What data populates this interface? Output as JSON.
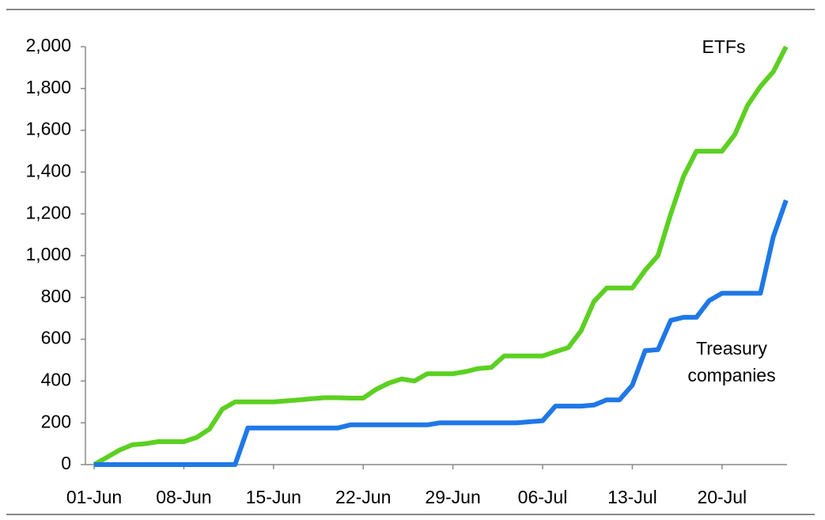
{
  "chart_data": {
    "type": "line",
    "categories": [
      "01-Jun",
      null,
      null,
      null,
      null,
      null,
      null,
      "08-Jun",
      null,
      null,
      null,
      null,
      null,
      null,
      "15-Jun",
      null,
      null,
      null,
      null,
      null,
      null,
      "22-Jun",
      null,
      null,
      null,
      null,
      null,
      null,
      "29-Jun",
      null,
      null,
      null,
      null,
      null,
      null,
      "06-Jul",
      null,
      null,
      null,
      null,
      null,
      null,
      "13-Jul",
      null,
      null,
      null,
      null,
      null,
      null,
      "20-Jul",
      null,
      null,
      null,
      null,
      null
    ],
    "series": [
      {
        "name": "ETFs",
        "color": "#5cd022",
        "values": [
          0,
          35,
          70,
          95,
          100,
          110,
          110,
          110,
          130,
          170,
          265,
          300,
          300,
          300,
          300,
          305,
          310,
          315,
          320,
          320,
          318,
          318,
          360,
          390,
          410,
          400,
          435,
          435,
          435,
          445,
          460,
          465,
          520,
          520,
          520,
          520,
          540,
          560,
          640,
          780,
          845,
          845,
          845,
          930,
          1000,
          1200,
          1380,
          1500,
          1500,
          1500,
          1580,
          1720,
          1810,
          1880,
          2000
        ]
      },
      {
        "name": "Treasury companies",
        "color": "#1f78e6",
        "values": [
          0,
          0,
          0,
          0,
          0,
          0,
          0,
          0,
          0,
          0,
          0,
          0,
          175,
          175,
          175,
          175,
          175,
          175,
          175,
          175,
          190,
          190,
          190,
          190,
          190,
          190,
          190,
          200,
          200,
          200,
          200,
          200,
          200,
          200,
          205,
          210,
          280,
          280,
          280,
          285,
          310,
          310,
          380,
          545,
          550,
          690,
          705,
          705,
          785,
          820,
          820,
          820,
          820,
          1090,
          1265
        ]
      }
    ],
    "ylim": [
      0,
      2000
    ],
    "yticks": [
      0,
      200,
      400,
      600,
      800,
      {
        "value": 1000,
        "label": "1,000"
      },
      {
        "value": 1200,
        "label": "1,200"
      },
      {
        "value": 1400,
        "label": "1,400"
      },
      {
        "value": 1600,
        "label": "1,600"
      },
      {
        "value": 1800,
        "label": "1,800"
      },
      {
        "value": 2000,
        "label": "2,000"
      }
    ],
    "grid": false
  }
}
